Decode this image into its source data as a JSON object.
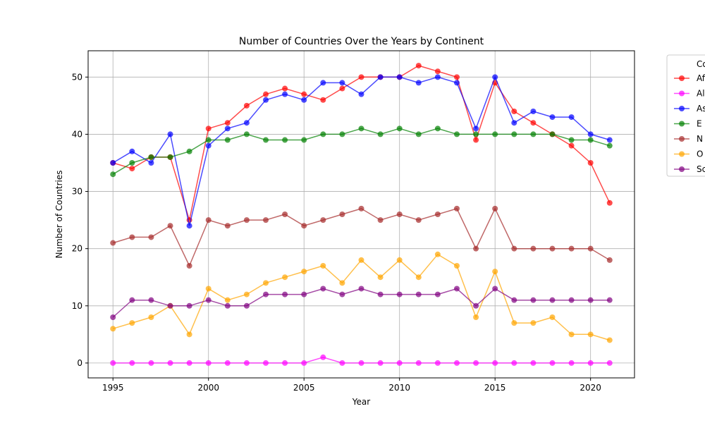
{
  "chart_data": {
    "type": "line",
    "title": "Number of Countries Over the Years by Continent",
    "xlabel": "Year",
    "ylabel": "Number of Countries",
    "xlim": [
      1993.7,
      2022.3
    ],
    "ylim": [
      -2.6,
      54.6
    ],
    "x_ticks": [
      1995,
      2000,
      2005,
      2010,
      2015,
      2020
    ],
    "y_ticks": [
      0,
      10,
      20,
      30,
      40,
      50
    ],
    "grid": true,
    "legend_title": "Co",
    "legend_position": "right, outside plot (clipped)",
    "x": [
      1995,
      1996,
      1997,
      1998,
      1999,
      2000,
      2001,
      2002,
      2003,
      2004,
      2005,
      2006,
      2007,
      2008,
      2009,
      2010,
      2011,
      2012,
      2013,
      2014,
      2015,
      2016,
      2017,
      2018,
      2019,
      2020,
      2021
    ],
    "series": [
      {
        "name": "Af",
        "color": "#ff0000",
        "values": [
          35,
          34,
          36,
          36,
          25,
          41,
          42,
          45,
          47,
          48,
          47,
          46,
          48,
          50,
          50,
          50,
          52,
          51,
          50,
          39,
          49,
          44,
          42,
          40,
          38,
          35,
          28
        ]
      },
      {
        "name": "Al",
        "color": "#ff00ff",
        "values": [
          0,
          0,
          0,
          0,
          0,
          0,
          0,
          0,
          0,
          0,
          0,
          1,
          0,
          0,
          0,
          0,
          0,
          0,
          0,
          0,
          0,
          0,
          0,
          0,
          0,
          0,
          0
        ]
      },
      {
        "name": "As",
        "color": "#0000ff",
        "values": [
          35,
          37,
          35,
          40,
          24,
          38,
          41,
          42,
          46,
          47,
          46,
          49,
          49,
          47,
          50,
          50,
          49,
          50,
          49,
          41,
          50,
          42,
          44,
          43,
          43,
          40,
          39
        ]
      },
      {
        "name": "E",
        "color": "#008000",
        "values": [
          33,
          35,
          36,
          36,
          37,
          39,
          39,
          40,
          39,
          39,
          39,
          40,
          40,
          41,
          40,
          41,
          40,
          41,
          40,
          40,
          40,
          40,
          40,
          40,
          39,
          39,
          38
        ]
      },
      {
        "name": "N",
        "color": "#a52a2a",
        "values": [
          21,
          22,
          22,
          24,
          17,
          25,
          24,
          25,
          25,
          26,
          24,
          25,
          26,
          27,
          25,
          26,
          25,
          26,
          27,
          20,
          27,
          20,
          20,
          20,
          20,
          20,
          18
        ]
      },
      {
        "name": "O",
        "color": "#ffa500",
        "values": [
          6,
          7,
          8,
          10,
          5,
          13,
          11,
          12,
          14,
          15,
          16,
          17,
          14,
          18,
          15,
          18,
          15,
          19,
          17,
          8,
          16,
          7,
          7,
          8,
          5,
          5,
          4
        ]
      },
      {
        "name": "Sc",
        "color": "#800080",
        "values": [
          8,
          11,
          11,
          10,
          10,
          11,
          10,
          10,
          12,
          12,
          12,
          13,
          12,
          13,
          12,
          12,
          12,
          12,
          13,
          10,
          13,
          11,
          11,
          11,
          11,
          11,
          11
        ]
      }
    ]
  }
}
